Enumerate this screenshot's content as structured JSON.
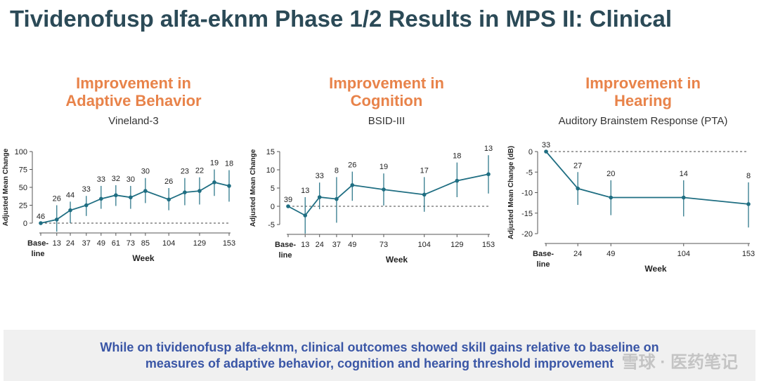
{
  "slide": {
    "title": "Tividenofusp alfa-eknm Phase 1/2 Results in MPS II: Clinical",
    "footer_line1": "While on tividenofusp alfa-eknm, clinical outcomes showed skill gains relative to baseline on",
    "footer_line2": "measures of adaptive behavior, cognition and hearing threshold improvement",
    "watermark": "雪球 · 医药笔记"
  },
  "panels": [
    {
      "heading_line1": "Improvement in",
      "heading_line2": "Adaptive Behavior",
      "subtitle": "Vineland-3"
    },
    {
      "heading_line1": "Improvement in",
      "heading_line2": "Cognition",
      "subtitle": "BSID-III"
    },
    {
      "heading_line1": "Improvement in",
      "heading_line2": "Hearing",
      "subtitle": "Auditory Brainstem Response (PTA)"
    }
  ],
  "colors": {
    "line": "#1f6e82",
    "heading": "#e8834a",
    "title": "#2b4a57",
    "footer_text": "#3a56a6"
  },
  "chart_data": [
    {
      "type": "line",
      "ylabel": "Adjusted Mean Change",
      "xlabel": "Week",
      "ylim": [
        0,
        100
      ],
      "yticks": [
        0,
        25,
        50,
        75,
        100
      ],
      "x_ticks": [
        "Base-\nline",
        "13",
        "24",
        "37",
        "49",
        "61",
        "73",
        "85",
        "104",
        "129",
        "153"
      ],
      "x": [
        0,
        13,
        24,
        37,
        49,
        61,
        73,
        85,
        104,
        117,
        129,
        141,
        153
      ],
      "y": [
        0,
        5,
        18,
        25,
        34,
        39,
        36,
        45,
        33,
        43,
        45,
        57,
        52
      ],
      "err_low": [
        0,
        -12,
        0,
        10,
        20,
        24,
        20,
        28,
        18,
        25,
        26,
        38,
        30
      ],
      "err_high": [
        0,
        25,
        30,
        38,
        52,
        53,
        52,
        63,
        49,
        63,
        64,
        75,
        74
      ],
      "n_labels": [
        "46",
        "26",
        "44",
        "33",
        "33",
        "32",
        "30",
        "30",
        "26",
        "23",
        "22",
        "19",
        "18"
      ],
      "reference_line": 0
    },
    {
      "type": "line",
      "ylabel": "Adjusted Mean Change",
      "xlabel": "Week",
      "ylim": [
        -5,
        15
      ],
      "yticks": [
        -5,
        0,
        5,
        10,
        15
      ],
      "x_ticks": [
        "Base-\nline",
        "13",
        "24",
        "37",
        "49",
        "73",
        "104",
        "129",
        "153"
      ],
      "x": [
        0,
        13,
        24,
        37,
        49,
        73,
        104,
        129,
        153
      ],
      "y": [
        0,
        -2.5,
        2.5,
        2.0,
        5.8,
        4.6,
        3.2,
        7.0,
        8.8
      ],
      "err_low": [
        0,
        -7.5,
        -0.8,
        -4.5,
        1.5,
        0.2,
        -1.5,
        2.5,
        3.5
      ],
      "err_high": [
        0,
        2.5,
        6.5,
        8.0,
        9.5,
        9.0,
        8.0,
        12.0,
        14.0
      ],
      "n_labels": [
        "39",
        "13",
        "33",
        "8",
        "26",
        "19",
        "17",
        "18",
        "13"
      ],
      "reference_line": 0
    },
    {
      "type": "line",
      "ylabel": "Adjusted Mean Change (dB)",
      "xlabel": "Week",
      "ylim": [
        -20,
        0
      ],
      "yticks": [
        -20,
        -15,
        -10,
        -5,
        0
      ],
      "x_ticks": [
        "Base-\nline",
        "24",
        "49",
        "104",
        "153"
      ],
      "x": [
        0,
        24,
        49,
        104,
        153
      ],
      "y": [
        0,
        -9,
        -11.2,
        -11.2,
        -12.8
      ],
      "err_low": [
        0,
        -13,
        -15.5,
        -15.8,
        -18.5
      ],
      "err_high": [
        0,
        -5,
        -7,
        -7,
        -7.5
      ],
      "n_labels": [
        "33",
        "27",
        "20",
        "14",
        "8"
      ],
      "reference_line": 0
    }
  ]
}
